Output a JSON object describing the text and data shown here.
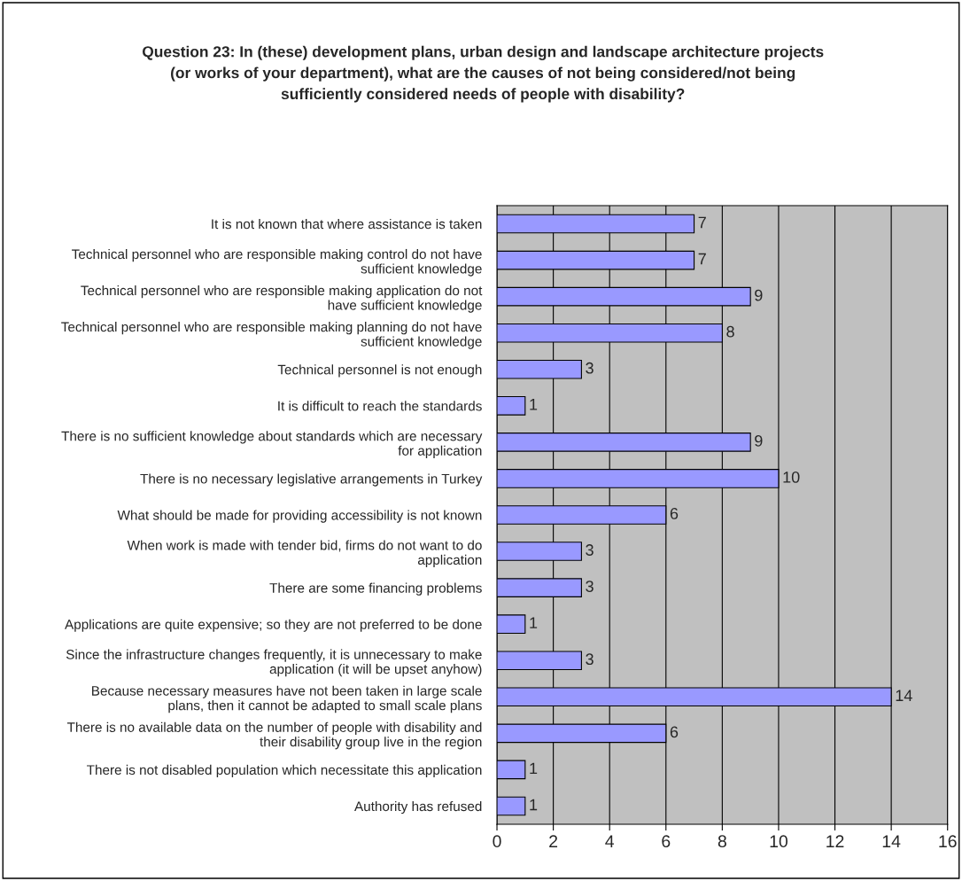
{
  "chart_data": {
    "type": "bar",
    "orientation": "horizontal",
    "title": "Question 23: In (these) development plans, urban design and landscape architecture projects\n(or works of your department), what are the causes of not being considered/not being\nsufficiently considered needs of people with disability?",
    "categories": [
      "It is not known that where assistance is taken",
      "Technical personnel who are responsible making control do not have\nsufficient knowledge",
      "Technical personnel who are responsible making application do not\nhave sufficient knowledge",
      "Technical personnel who are responsible making planning do not have\nsufficient knowledge",
      "Technical personnel is not enough",
      "It is difficult to reach the standards",
      "There is no sufficient knowledge about standards which are necessary\nfor application",
      "There is no necessary legislative arrangements in Turkey",
      "What should be made for providing accessibility is not known",
      "When work is made with tender bid, firms do not want to do\napplication",
      "There are some financing problems",
      "Applications are quite expensive; so they are not preferred to be done",
      "Since the infrastructure changes frequently, it is unnecessary to make\napplication (it will be upset anyhow)",
      "Because necessary measures have not been taken in large scale\nplans, then it cannot be adapted to small scale plans",
      "There is no available data on the number of people with disability and\ntheir disability group live in the region",
      "There is not disabled population which necessitate this application",
      "Authority has refused"
    ],
    "values": [
      7,
      7,
      9,
      8,
      3,
      1,
      9,
      10,
      6,
      3,
      3,
      1,
      3,
      14,
      6,
      1,
      1
    ],
    "color": "#9999ff",
    "xlim": [
      0,
      16
    ],
    "xticks": [
      0,
      2,
      4,
      6,
      8,
      10,
      12,
      14,
      16
    ],
    "grid": "x",
    "data_labels": true
  }
}
